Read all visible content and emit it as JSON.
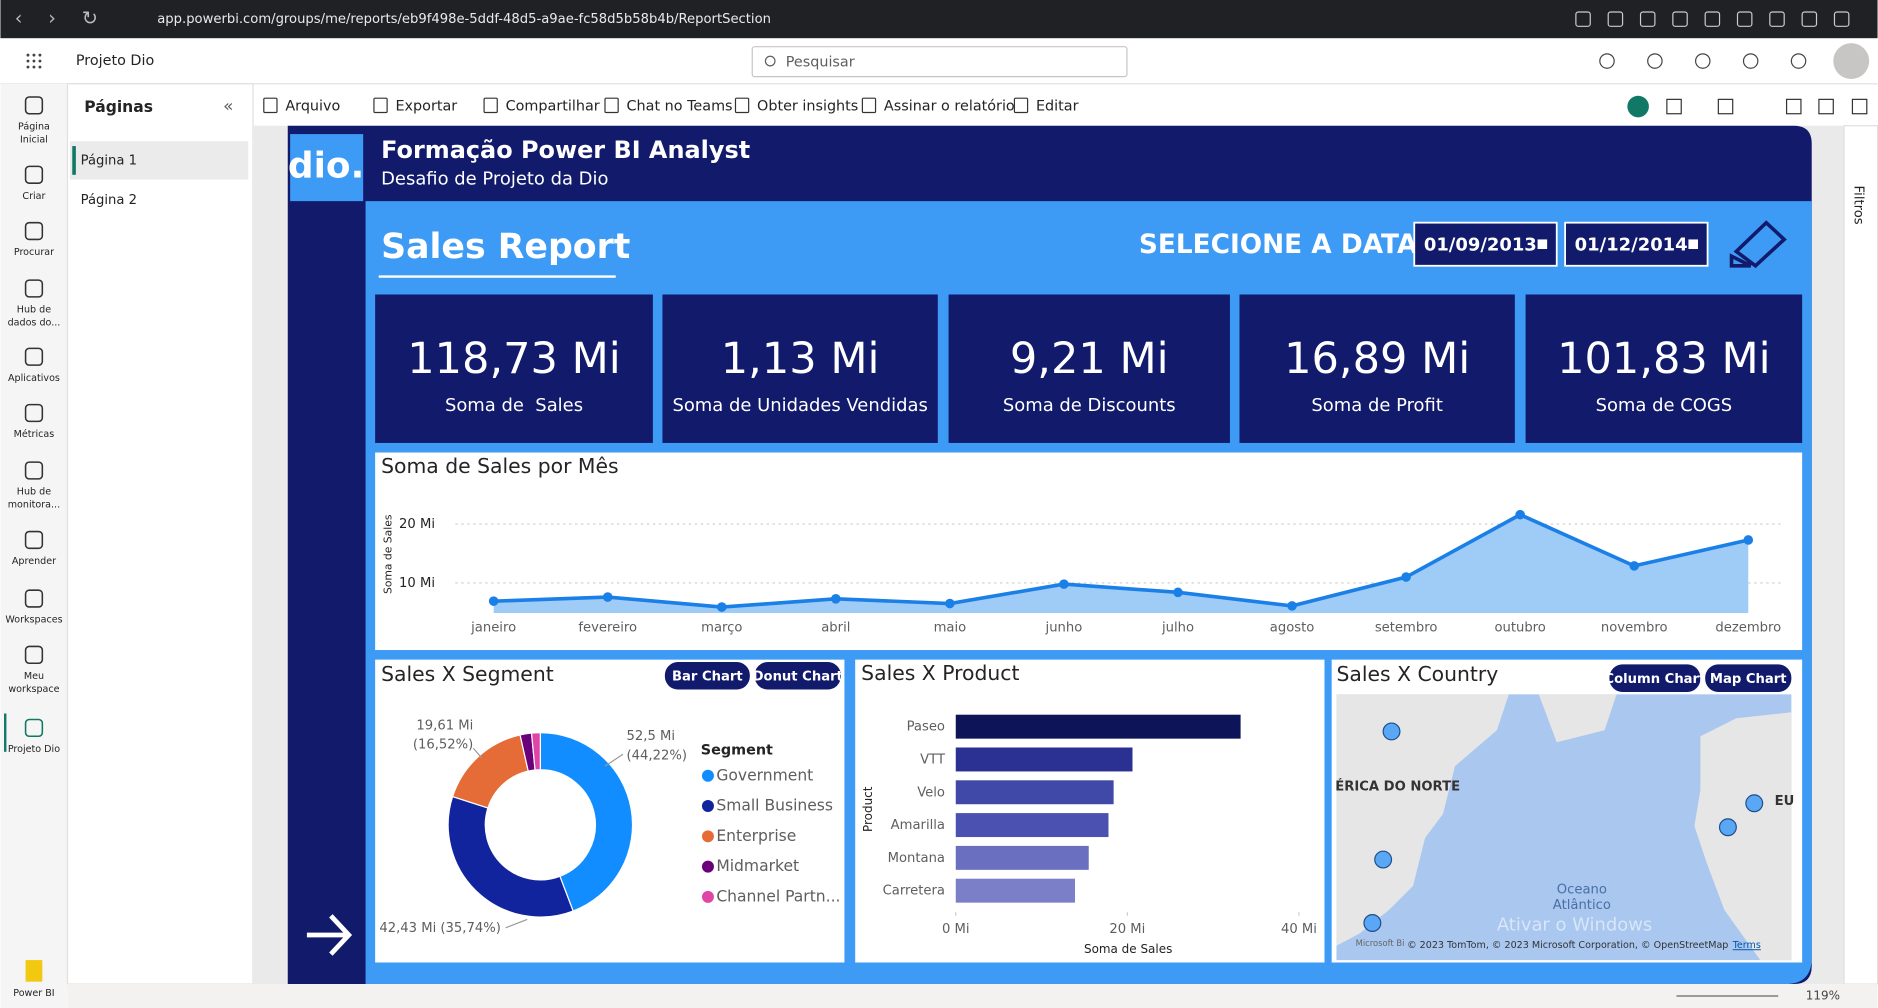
{
  "browser": {
    "url": "app.powerbi.com/groups/me/reports/eb9f498e-5ddf-48d5-a9ae-fc58d5b58b4b/ReportSection"
  },
  "app": {
    "workspace": "Projeto Dio",
    "search": "Pesquisar"
  },
  "nav": [
    [
      "Página",
      "Inicial"
    ],
    [
      "Criar"
    ],
    [
      "Procurar"
    ],
    [
      "Hub de",
      "dados do..."
    ],
    [
      "Aplicativos"
    ],
    [
      "Métricas"
    ],
    [
      "Hub de",
      "monitora..."
    ],
    [
      "Aprender"
    ],
    [
      "Workspaces"
    ],
    [
      "Meu",
      "workspace"
    ],
    [
      "Projeto Dio"
    ]
  ],
  "product": "Power BI",
  "pages": {
    "title": "Páginas",
    "items": [
      "Página 1",
      "Página 2"
    ]
  },
  "toolbar": [
    "Arquivo",
    "Exportar",
    "Compartilhar",
    "Chat no Teams",
    "Obter insights",
    "Assinar o relatório",
    "Editar"
  ],
  "filters": "Filtros",
  "report": {
    "title": "Formação Power BI Analyst",
    "subtitle": "Desafio de Projeto da Dio",
    "heading": "Sales Report",
    "date_prompt": "SELECIONE A DATA:",
    "dates": [
      "01/09/2013",
      "01/12/2014"
    ],
    "kpis": [
      {
        "value": "118,73 Mi",
        "label": "Soma de  Sales"
      },
      {
        "value": "1,13 Mi",
        "label": "Soma de Unidades Vendidas"
      },
      {
        "value": "9,21 Mi",
        "label": "Soma de Discounts"
      },
      {
        "value": "16,89 Mi",
        "label": "Soma de Profit"
      },
      {
        "value": "101,83 Mi",
        "label": "Soma de COGS"
      }
    ],
    "segment_buttons": [
      "Bar Chart",
      "Donut Chart"
    ],
    "country_buttons": [
      "Column Chart",
      "Map Chart"
    ]
  },
  "map": {
    "title": "Sales X Country",
    "labels": [
      "ÉRICA DO NORTE",
      "EU",
      "Oceano",
      "Atlântico"
    ],
    "attribution": "© 2023 TomTom, © 2023 Microsoft Corporation, © OpenStreetMap",
    "terms": "Terms",
    "brand": "Microsoft Bi"
  },
  "watermark": "Ativar o Windows",
  "zoom": "119%",
  "chart_data": [
    {
      "type": "line",
      "title": "Soma de Sales por Mês",
      "y_label": "Soma de Sales",
      "categories": [
        "janeiro",
        "fevereiro",
        "março",
        "abril",
        "maio",
        "junho",
        "julho",
        "agosto",
        "setembro",
        "outubro",
        "novembro",
        "dezembro"
      ],
      "values": [
        6.9,
        7.6,
        5.9,
        7.3,
        6.5,
        9.8,
        8.4,
        6.1,
        11.0,
        21.6,
        12.9,
        17.3
      ],
      "color": "#1a7fe6",
      "area_color": "#9fcbf7",
      "ylim": [
        4.9,
        22.6
      ],
      "yticks": [
        {
          "value": 10,
          "label": "10 Mi"
        },
        {
          "value": 20,
          "label": "20 Mi"
        }
      ],
      "grid": true
    },
    {
      "type": "pie",
      "title": "Sales X Segment",
      "legend_title": "Segment",
      "categories": [
        "Government",
        "Small Business",
        "Enterprise",
        "Midmarket",
        "Channel Partn..."
      ],
      "values": [
        52.5,
        42.43,
        19.61,
        2.38,
        1.81
      ],
      "value_labels": [
        "52,5 Mi (44,22%)",
        "42,43 Mi (35,74%)",
        "19,61 Mi (16,52%)",
        null,
        null
      ],
      "colors": [
        "#118dff",
        "#12239e",
        "#e66c37",
        "#6b007b",
        "#e044a7"
      ]
    },
    {
      "type": "hbar",
      "title": "Sales X Product",
      "x_label": "Soma de Sales",
      "y_label": "Product",
      "categories": [
        "Paseo",
        "VTT",
        "Velo",
        "Amarilla",
        "Montana",
        "Carretera"
      ],
      "values": [
        33.2,
        20.6,
        18.4,
        17.8,
        15.5,
        13.9
      ],
      "colors": [
        "#0d1558",
        "#2a3192",
        "#4048a8",
        "#4a51b0",
        "#6a6fc0",
        "#7b7fc8"
      ],
      "xlim": [
        0,
        42
      ],
      "xticks": [
        {
          "value": 0,
          "label": "0 Mi"
        },
        {
          "value": 20,
          "label": "20 Mi"
        },
        {
          "value": 40,
          "label": "40 Mi"
        }
      ]
    }
  ]
}
